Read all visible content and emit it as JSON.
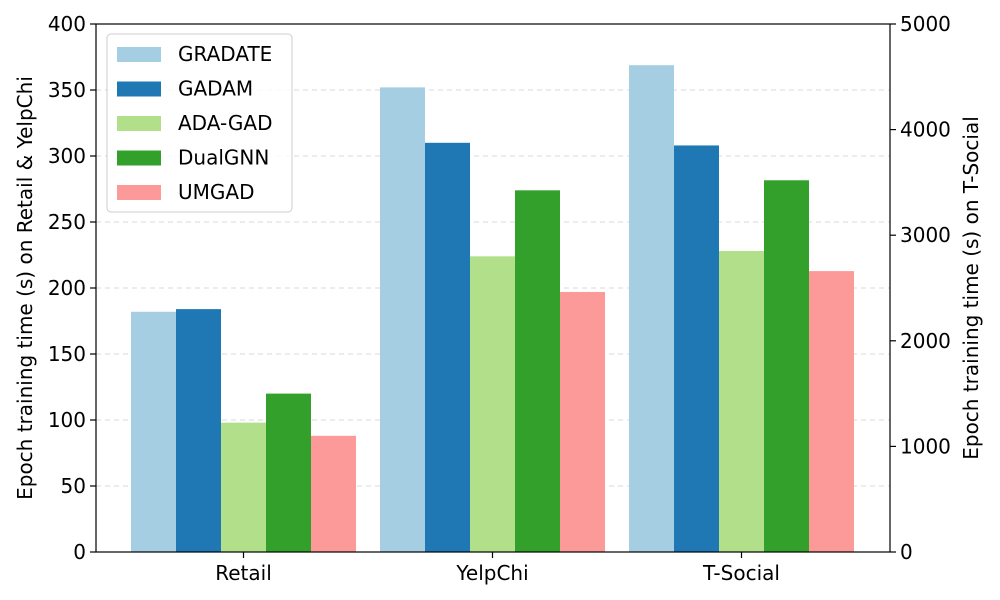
{
  "chart_data": {
    "type": "bar",
    "categories": [
      "Retail",
      "YelpChi",
      "T-Social"
    ],
    "series": [
      {
        "name": "GRADATE",
        "color": "#a6cee3",
        "values": [
          182,
          352,
          4610
        ]
      },
      {
        "name": "GADAM",
        "color": "#1f78b4",
        "values": [
          184,
          310,
          3850
        ]
      },
      {
        "name": "ADA-GAD",
        "color": "#b2df8a",
        "values": [
          98,
          224,
          2850
        ]
      },
      {
        "name": "DualGNN",
        "color": "#33a02c",
        "values": [
          120,
          274,
          3520
        ]
      },
      {
        "name": "UMGAD",
        "color": "#fb9a99",
        "values": [
          88,
          197,
          2660
        ]
      }
    ],
    "axis_assignment": [
      "left",
      "left",
      "right"
    ],
    "ylabel": "Epoch training time (s) on Retail & YelpChi",
    "ylabel_right": "Epoch training time (s) on T-Social",
    "ylim": [
      0,
      400
    ],
    "ylim_right": [
      0,
      5000
    ],
    "yticks": [
      "0",
      "50",
      "100",
      "150",
      "200",
      "250",
      "300",
      "350",
      "400"
    ],
    "yticks_right": [
      "0",
      "1000",
      "2000",
      "3000",
      "4000",
      "5000"
    ],
    "grid": true,
    "legend_position": "upper-left"
  }
}
